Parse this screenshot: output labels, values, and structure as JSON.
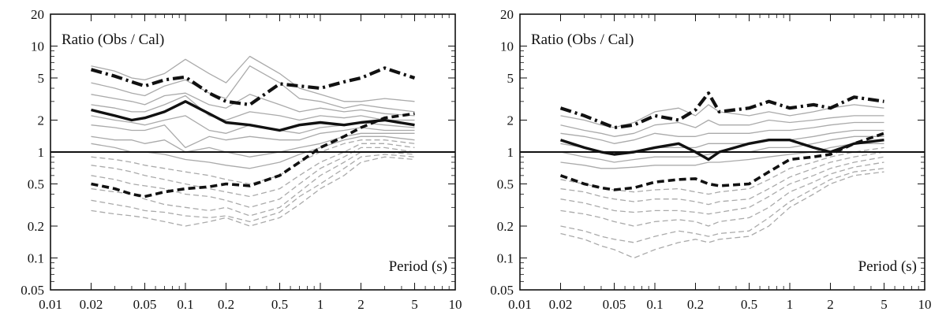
{
  "chart_data": [
    {
      "type": "line",
      "title": "",
      "inner_label": "Ratio (Obs / Cal)",
      "xlabel": "Period (s)",
      "x_scale": "log",
      "y_scale": "log",
      "xlim": [
        0.01,
        10
      ],
      "ylim": [
        0.05,
        20
      ],
      "x_ticks": [
        0.01,
        0.02,
        0.05,
        0.1,
        0.2,
        0.5,
        1,
        2,
        5,
        10
      ],
      "x_tick_labels": [
        "0.01",
        "0.02",
        "0.05",
        "0.1",
        "0.2",
        "0.5",
        "1",
        "2",
        "5",
        "10"
      ],
      "y_ticks": [
        0.05,
        0.1,
        0.2,
        0.5,
        1,
        2,
        5,
        10,
        20
      ],
      "y_tick_labels": [
        "0.05",
        "0.1",
        "0.2",
        "0.5",
        "1",
        "2",
        "5",
        "10",
        "20"
      ],
      "reference_line": 1,
      "x": [
        0.02,
        0.03,
        0.04,
        0.05,
        0.07,
        0.1,
        0.15,
        0.2,
        0.3,
        0.5,
        0.7,
        1,
        1.5,
        2,
        3,
        5
      ],
      "series": [
        {
          "style": "thick-dashdot",
          "values": [
            6.0,
            5.2,
            4.6,
            4.2,
            4.8,
            5.1,
            3.6,
            3.0,
            2.8,
            4.4,
            4.2,
            4.0,
            4.6,
            5.0,
            6.2,
            5.0
          ]
        },
        {
          "style": "thick-solid",
          "values": [
            2.5,
            2.2,
            2.0,
            2.1,
            2.4,
            3.0,
            2.3,
            1.9,
            1.8,
            1.6,
            1.8,
            1.9,
            1.8,
            1.9,
            2.0,
            1.8
          ]
        },
        {
          "style": "thick-dashed",
          "values": [
            0.5,
            0.45,
            0.4,
            0.38,
            0.42,
            0.45,
            0.47,
            0.5,
            0.48,
            0.6,
            0.8,
            1.1,
            1.4,
            1.7,
            2.1,
            2.3
          ]
        },
        {
          "style": "gray-solid",
          "values": [
            6.5,
            5.8,
            5.0,
            4.8,
            5.5,
            7.5,
            5.5,
            4.5,
            8.0,
            5.5,
            4.0,
            3.5,
            3.0,
            3.0,
            3.2,
            3.0
          ]
        },
        {
          "style": "gray-solid",
          "values": [
            4.5,
            4.0,
            3.6,
            3.4,
            4.2,
            4.8,
            3.6,
            3.2,
            6.5,
            4.5,
            3.2,
            3.0,
            2.6,
            2.8,
            2.6,
            2.4
          ]
        },
        {
          "style": "gray-solid",
          "values": [
            3.5,
            3.2,
            3.0,
            2.8,
            3.4,
            3.6,
            2.8,
            2.6,
            3.5,
            2.8,
            2.4,
            2.6,
            2.4,
            2.5,
            2.3,
            2.2
          ]
        },
        {
          "style": "gray-solid",
          "values": [
            2.8,
            2.6,
            2.4,
            2.4,
            2.8,
            3.4,
            2.2,
            2.0,
            2.4,
            2.2,
            2.0,
            2.2,
            2.1,
            2.2,
            2.0,
            2.0
          ]
        },
        {
          "style": "gray-solid",
          "values": [
            2.2,
            2.0,
            1.9,
            1.8,
            2.0,
            2.2,
            1.6,
            1.5,
            1.8,
            1.6,
            1.5,
            1.7,
            1.8,
            1.9,
            1.8,
            1.7
          ]
        },
        {
          "style": "gray-solid",
          "values": [
            1.8,
            1.7,
            1.6,
            1.6,
            1.8,
            1.1,
            1.4,
            1.3,
            1.4,
            1.3,
            1.3,
            1.5,
            1.6,
            1.7,
            1.6,
            1.6
          ]
        },
        {
          "style": "gray-solid",
          "values": [
            1.4,
            1.3,
            1.3,
            1.2,
            1.3,
            1.0,
            1.1,
            1.0,
            0.9,
            1.0,
            1.1,
            1.2,
            1.4,
            1.5,
            1.5,
            1.5
          ]
        },
        {
          "style": "gray-solid",
          "values": [
            1.2,
            1.1,
            1.0,
            1.0,
            0.95,
            0.85,
            0.8,
            0.75,
            0.7,
            0.8,
            0.95,
            1.1,
            1.3,
            1.4,
            1.4,
            1.3
          ]
        },
        {
          "style": "gray-dashed",
          "values": [
            0.9,
            0.85,
            0.8,
            0.75,
            0.7,
            0.65,
            0.6,
            0.55,
            0.5,
            0.6,
            0.8,
            1.0,
            1.2,
            1.3,
            1.3,
            1.2
          ]
        },
        {
          "style": "gray-dashed",
          "values": [
            0.75,
            0.7,
            0.65,
            0.6,
            0.55,
            0.5,
            0.45,
            0.42,
            0.38,
            0.45,
            0.6,
            0.8,
            1.0,
            1.2,
            1.2,
            1.1
          ]
        },
        {
          "style": "gray-dashed",
          "values": [
            0.6,
            0.55,
            0.5,
            0.48,
            0.45,
            0.4,
            0.38,
            0.35,
            0.3,
            0.36,
            0.5,
            0.7,
            0.9,
            1.1,
            1.1,
            1.0
          ]
        },
        {
          "style": "gray-dashed",
          "values": [
            0.45,
            0.42,
            0.4,
            0.36,
            0.32,
            0.3,
            0.28,
            0.3,
            0.25,
            0.3,
            0.42,
            0.6,
            0.8,
            1.0,
            1.0,
            0.95
          ]
        },
        {
          "style": "gray-dashed",
          "values": [
            0.35,
            0.32,
            0.3,
            0.28,
            0.27,
            0.25,
            0.24,
            0.25,
            0.22,
            0.27,
            0.38,
            0.5,
            0.7,
            0.9,
            0.95,
            0.9
          ]
        },
        {
          "style": "gray-dashed",
          "values": [
            0.28,
            0.26,
            0.25,
            0.24,
            0.22,
            0.2,
            0.22,
            0.24,
            0.2,
            0.24,
            0.32,
            0.45,
            0.6,
            0.8,
            0.9,
            0.85
          ]
        }
      ]
    },
    {
      "type": "line",
      "title": "",
      "inner_label": "Ratio (Obs / Cal)",
      "xlabel": "Period (s)",
      "x_scale": "log",
      "y_scale": "log",
      "xlim": [
        0.01,
        10
      ],
      "ylim": [
        0.05,
        20
      ],
      "x_ticks": [
        0.01,
        0.02,
        0.05,
        0.1,
        0.2,
        0.5,
        1,
        2,
        5,
        10
      ],
      "x_tick_labels": [
        "0.01",
        "0.02",
        "0.05",
        "0.1",
        "0.2",
        "0.5",
        "1",
        "2",
        "5",
        "10"
      ],
      "y_ticks": [
        0.05,
        0.1,
        0.2,
        0.5,
        1,
        2,
        5,
        10,
        20
      ],
      "y_tick_labels": [
        "0.05",
        "0.1",
        "0.2",
        "0.5",
        "1",
        "2",
        "5",
        "10",
        "20"
      ],
      "reference_line": 1,
      "x": [
        0.02,
        0.03,
        0.04,
        0.05,
        0.07,
        0.1,
        0.15,
        0.2,
        0.25,
        0.3,
        0.5,
        0.7,
        1,
        1.5,
        2,
        3,
        5
      ],
      "series": [
        {
          "style": "thick-dashdot",
          "values": [
            2.6,
            2.2,
            1.9,
            1.7,
            1.8,
            2.2,
            2.0,
            2.5,
            3.6,
            2.4,
            2.6,
            3.0,
            2.6,
            2.8,
            2.6,
            3.3,
            3.0
          ]
        },
        {
          "style": "thick-solid",
          "values": [
            1.3,
            1.1,
            1.0,
            0.95,
            1.0,
            1.1,
            1.2,
            1.0,
            0.85,
            1.0,
            1.2,
            1.3,
            1.3,
            1.1,
            1.0,
            1.2,
            1.3
          ]
        },
        {
          "style": "thick-dashed",
          "values": [
            0.6,
            0.5,
            0.46,
            0.44,
            0.46,
            0.52,
            0.55,
            0.56,
            0.5,
            0.48,
            0.5,
            0.65,
            0.85,
            0.9,
            0.95,
            1.2,
            1.5
          ]
        },
        {
          "style": "gray-solid",
          "values": [
            2.2,
            2.0,
            1.8,
            1.7,
            1.9,
            2.4,
            2.6,
            2.2,
            2.8,
            2.4,
            2.2,
            2.4,
            2.2,
            2.4,
            2.6,
            2.8,
            2.6
          ]
        },
        {
          "style": "gray-solid",
          "values": [
            1.8,
            1.6,
            1.5,
            1.4,
            1.5,
            1.8,
            1.9,
            1.7,
            2.0,
            1.8,
            1.8,
            2.0,
            1.9,
            2.0,
            2.1,
            2.2,
            2.2
          ]
        },
        {
          "style": "gray-solid",
          "values": [
            1.5,
            1.4,
            1.3,
            1.2,
            1.3,
            1.5,
            1.4,
            1.4,
            1.5,
            1.5,
            1.5,
            1.6,
            1.6,
            1.7,
            1.8,
            1.9,
            1.9
          ]
        },
        {
          "style": "gray-solid",
          "values": [
            1.2,
            1.1,
            1.0,
            1.0,
            1.0,
            1.1,
            1.1,
            1.1,
            1.2,
            1.2,
            1.2,
            1.3,
            1.3,
            1.4,
            1.5,
            1.6,
            1.6
          ]
        },
        {
          "style": "gray-solid",
          "values": [
            1.0,
            0.9,
            0.85,
            0.8,
            0.85,
            0.9,
            0.9,
            0.9,
            0.95,
            1.0,
            1.0,
            1.1,
            1.1,
            1.2,
            1.3,
            1.4,
            1.4
          ]
        },
        {
          "style": "gray-solid",
          "values": [
            0.8,
            0.75,
            0.7,
            0.7,
            0.72,
            0.75,
            0.75,
            0.75,
            0.8,
            0.8,
            0.85,
            0.9,
            0.95,
            1.0,
            1.1,
            1.2,
            1.2
          ]
        },
        {
          "style": "gray-dashed",
          "values": [
            0.55,
            0.5,
            0.46,
            0.44,
            0.42,
            0.44,
            0.45,
            0.42,
            0.4,
            0.42,
            0.45,
            0.55,
            0.7,
            0.8,
            0.9,
            1.0,
            1.1
          ]
        },
        {
          "style": "gray-dashed",
          "values": [
            0.45,
            0.42,
            0.38,
            0.36,
            0.34,
            0.36,
            0.36,
            0.34,
            0.32,
            0.34,
            0.36,
            0.45,
            0.58,
            0.7,
            0.8,
            0.9,
            1.0
          ]
        },
        {
          "style": "gray-dashed",
          "values": [
            0.36,
            0.33,
            0.3,
            0.28,
            0.27,
            0.28,
            0.28,
            0.27,
            0.26,
            0.27,
            0.3,
            0.38,
            0.5,
            0.6,
            0.7,
            0.8,
            0.9
          ]
        },
        {
          "style": "gray-dashed",
          "values": [
            0.28,
            0.26,
            0.24,
            0.22,
            0.2,
            0.22,
            0.23,
            0.22,
            0.2,
            0.22,
            0.24,
            0.3,
            0.42,
            0.52,
            0.62,
            0.72,
            0.8
          ]
        },
        {
          "style": "gray-dashed",
          "values": [
            0.2,
            0.18,
            0.16,
            0.15,
            0.14,
            0.16,
            0.18,
            0.17,
            0.16,
            0.17,
            0.18,
            0.24,
            0.34,
            0.45,
            0.55,
            0.65,
            0.7
          ]
        },
        {
          "style": "gray-dashed",
          "values": [
            0.17,
            0.15,
            0.13,
            0.12,
            0.1,
            0.12,
            0.14,
            0.15,
            0.14,
            0.15,
            0.16,
            0.2,
            0.3,
            0.4,
            0.5,
            0.6,
            0.65
          ]
        }
      ]
    }
  ]
}
